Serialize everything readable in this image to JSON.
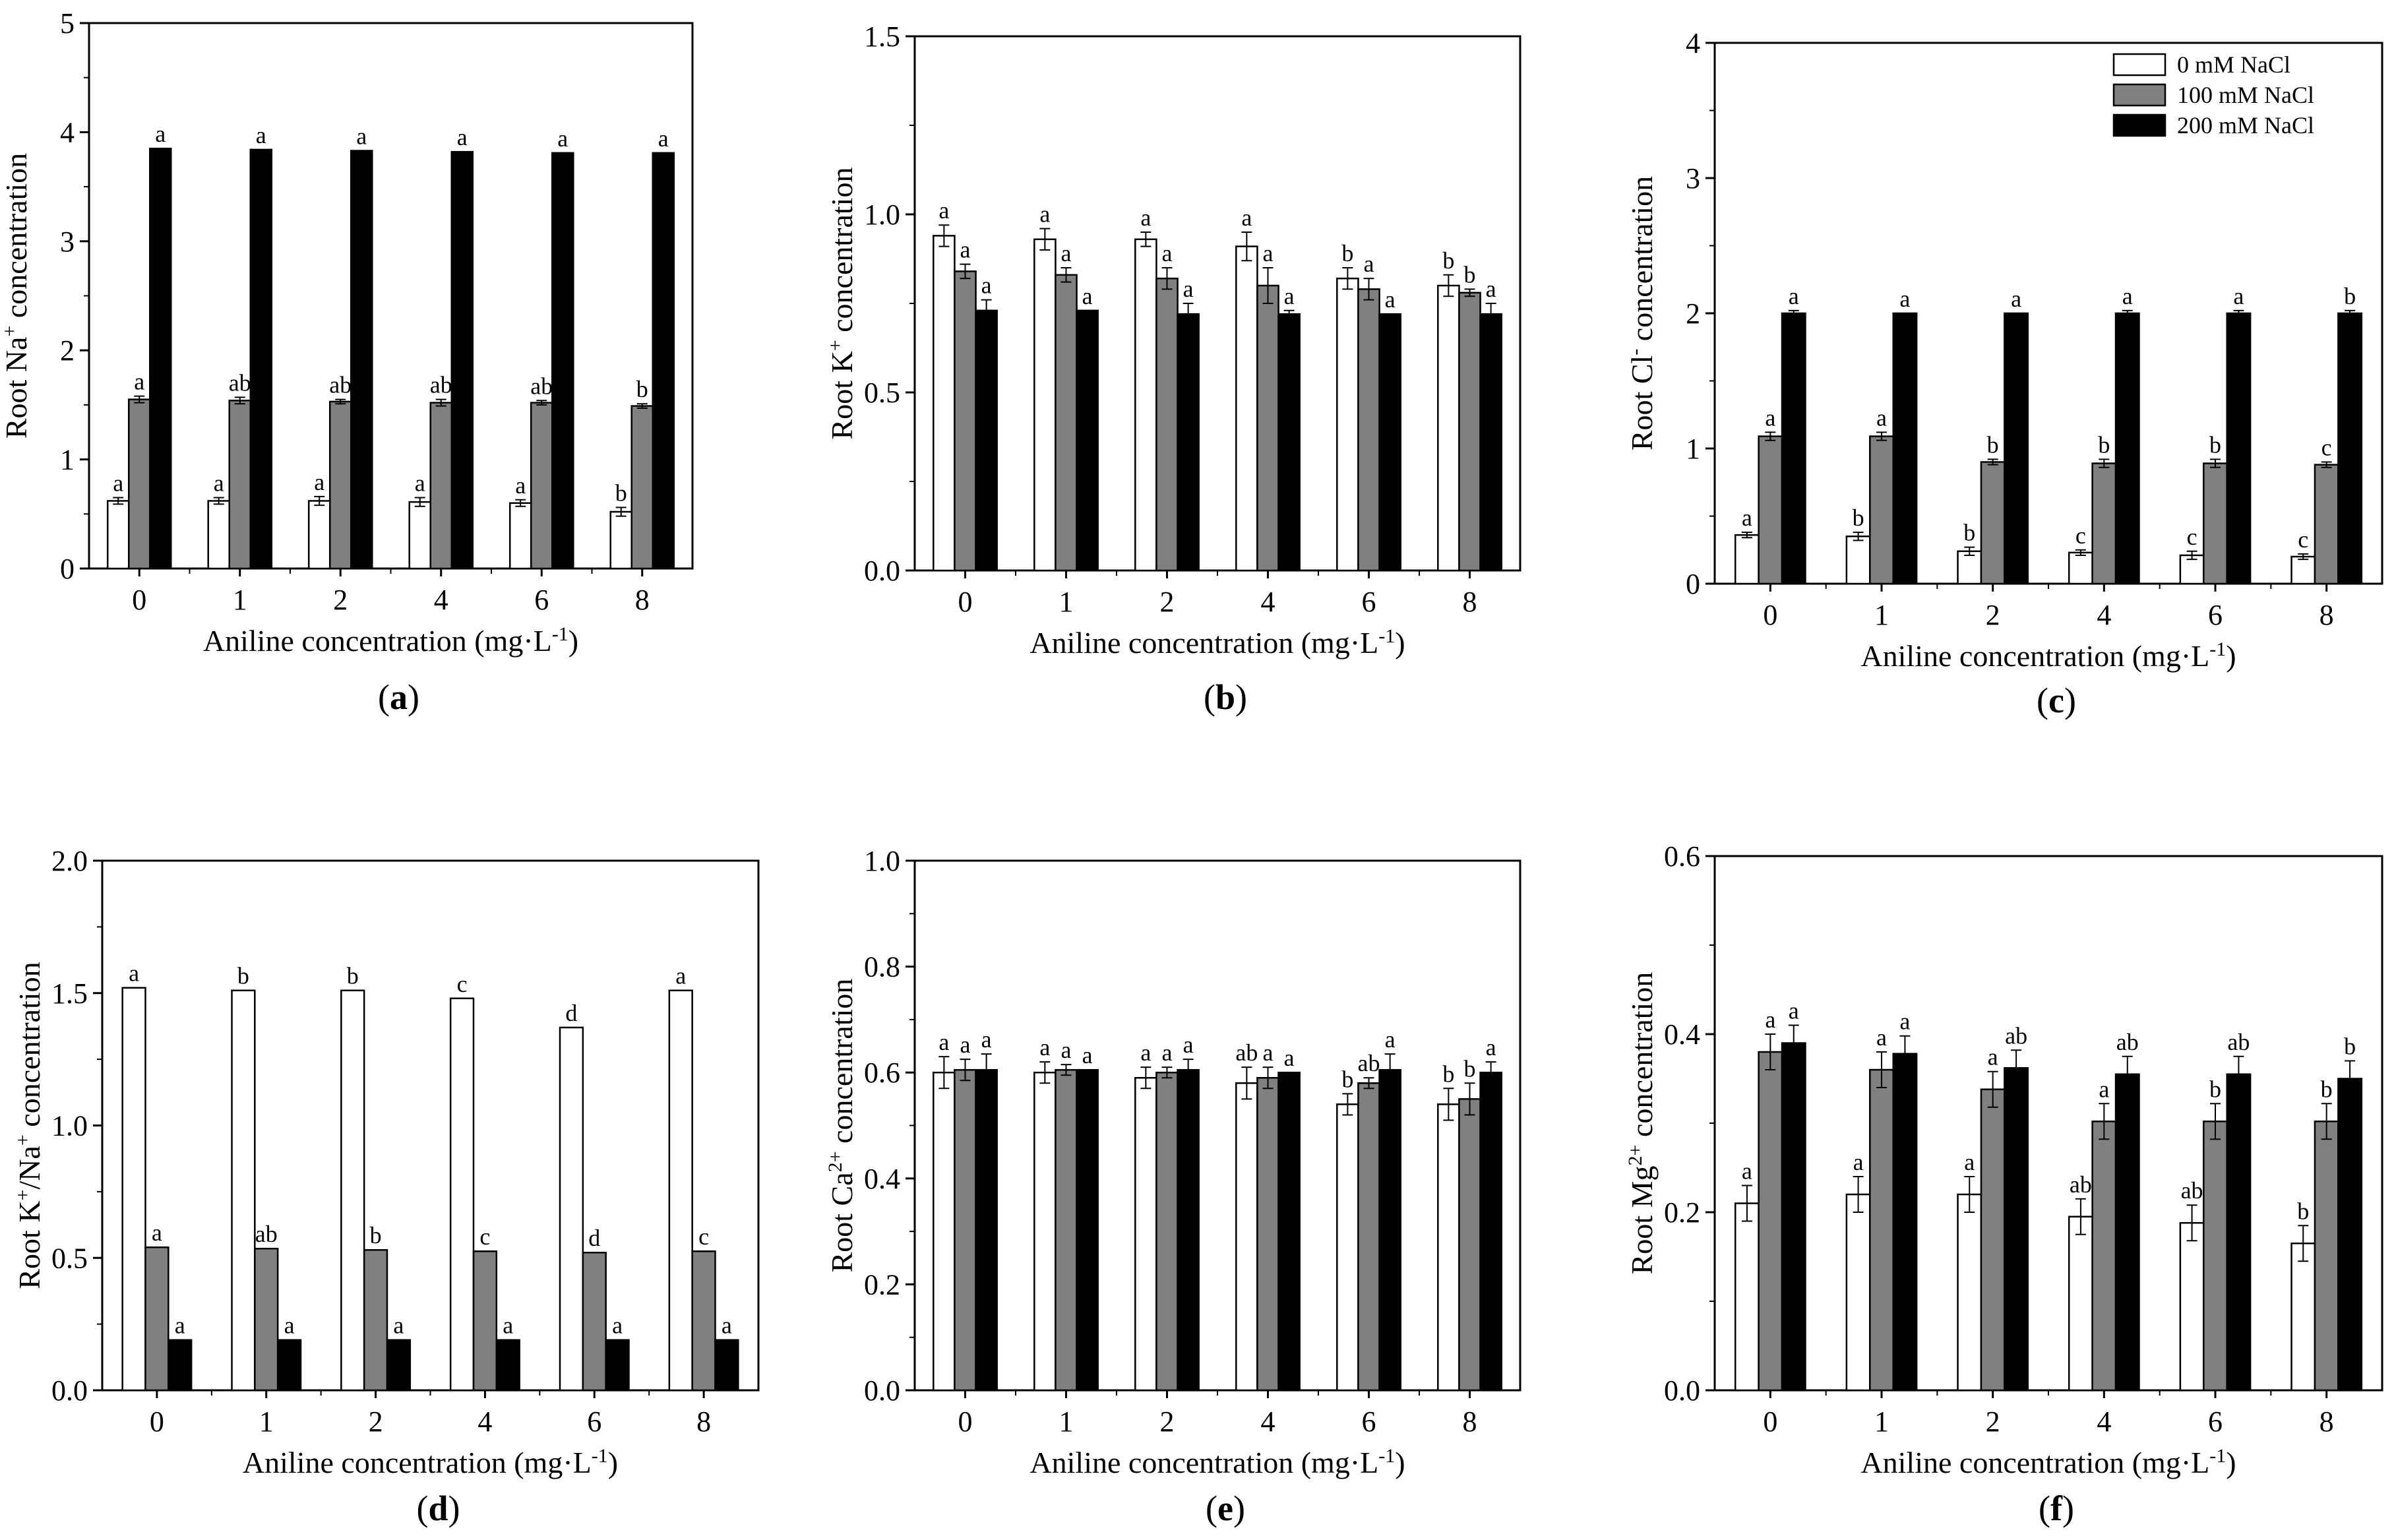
{
  "figure": {
    "legend": {
      "entries": [
        "0 mM NaCl",
        "100 mM NaCl",
        "200 mM NaCl"
      ],
      "colors": [
        "#ffffff",
        "#808080",
        "#000000"
      ]
    },
    "panel_labels": [
      "(a)",
      "(b)",
      "(c)",
      "(d)",
      "(e)",
      "(f)"
    ]
  },
  "chart_data": [
    {
      "type": "bar",
      "panel": "(a)",
      "ylabel": "Root Na+ concentration",
      "ylabel_main": "Root Na",
      "ylabel_sup": "+",
      "ylabel_rest": " concentration",
      "xlabel": "Aniline concentration (mg·L-1)",
      "ylim": [
        0,
        5
      ],
      "yticks": [
        "0",
        "1",
        "2",
        "3",
        "4",
        "5"
      ],
      "categories": [
        "0",
        "1",
        "2",
        "4",
        "6",
        "8"
      ],
      "series": [
        {
          "name": "0 mM NaCl",
          "values": [
            0.62,
            0.62,
            0.62,
            0.61,
            0.6,
            0.52
          ],
          "errors": [
            0.03,
            0.03,
            0.04,
            0.04,
            0.03,
            0.04
          ],
          "letters": [
            "a",
            "a",
            "a",
            "a",
            "a",
            "b"
          ]
        },
        {
          "name": "100 mM NaCl",
          "values": [
            1.55,
            1.54,
            1.53,
            1.52,
            1.52,
            1.49
          ],
          "errors": [
            0.03,
            0.03,
            0.02,
            0.03,
            0.02,
            0.02
          ],
          "letters": [
            "a",
            "ab",
            "ab",
            "ab",
            "ab",
            "b"
          ]
        },
        {
          "name": "200 mM NaCl",
          "values": [
            3.85,
            3.84,
            3.83,
            3.82,
            3.81,
            3.81
          ],
          "errors": [
            0.0,
            0.0,
            0.0,
            0.0,
            0.0,
            0.0
          ],
          "letters": [
            "a",
            "a",
            "a",
            "a",
            "a",
            "a"
          ]
        }
      ]
    },
    {
      "type": "bar",
      "panel": "(b)",
      "ylabel": "Root K+ concentration",
      "ylabel_main": "Root K",
      "ylabel_sup": "+",
      "ylabel_rest": " concentration",
      "xlabel": "Aniline concentration (mg·L-1)",
      "ylim": [
        0,
        1.5
      ],
      "yticks": [
        "0.0",
        "0.5",
        "1.0",
        "1.5"
      ],
      "categories": [
        "0",
        "1",
        "2",
        "4",
        "6",
        "8"
      ],
      "series": [
        {
          "name": "0 mM NaCl",
          "values": [
            0.94,
            0.93,
            0.93,
            0.91,
            0.82,
            0.8
          ],
          "errors": [
            0.03,
            0.03,
            0.02,
            0.04,
            0.03,
            0.03
          ],
          "letters": [
            "a",
            "a",
            "a",
            "a",
            "b",
            "b"
          ]
        },
        {
          "name": "100 mM NaCl",
          "values": [
            0.84,
            0.83,
            0.82,
            0.8,
            0.79,
            0.78
          ],
          "errors": [
            0.02,
            0.02,
            0.03,
            0.05,
            0.03,
            0.01
          ],
          "letters": [
            "a",
            "a",
            "a",
            "a",
            "a",
            "b"
          ]
        },
        {
          "name": "200 mM NaCl",
          "values": [
            0.73,
            0.73,
            0.72,
            0.72,
            0.72,
            0.72
          ],
          "errors": [
            0.03,
            0.0,
            0.03,
            0.01,
            0.0,
            0.03
          ],
          "letters": [
            "a",
            "a",
            "a",
            "a",
            "a",
            "a"
          ]
        }
      ]
    },
    {
      "type": "bar",
      "panel": "(c)",
      "ylabel": "Root Cl- concentration",
      "ylabel_main": "Root Cl",
      "ylabel_sup": "-",
      "ylabel_rest": " concentration",
      "xlabel": "Aniline concentration (mg·L-1)",
      "ylim": [
        0,
        4
      ],
      "yticks": [
        "0",
        "1",
        "2",
        "3",
        "4"
      ],
      "categories": [
        "0",
        "1",
        "2",
        "4",
        "6",
        "8"
      ],
      "legend": "top-right",
      "series": [
        {
          "name": "0 mM NaCl",
          "values": [
            0.36,
            0.35,
            0.24,
            0.23,
            0.21,
            0.2
          ],
          "errors": [
            0.02,
            0.03,
            0.03,
            0.02,
            0.03,
            0.02
          ],
          "letters": [
            "a",
            "b",
            "b",
            "c",
            "c",
            "c"
          ]
        },
        {
          "name": "100 mM NaCl",
          "values": [
            1.09,
            1.09,
            0.9,
            0.89,
            0.89,
            0.88
          ],
          "errors": [
            0.03,
            0.03,
            0.02,
            0.03,
            0.03,
            0.02
          ],
          "letters": [
            "a",
            "a",
            "b",
            "b",
            "b",
            "c"
          ]
        },
        {
          "name": "200 mM NaCl",
          "values": [
            2.0,
            2.0,
            2.0,
            2.0,
            2.0,
            2.0
          ],
          "errors": [
            0.02,
            0.0,
            0.0,
            0.02,
            0.02,
            0.02
          ],
          "letters": [
            "a",
            "a",
            "a",
            "a",
            "a",
            "b"
          ]
        }
      ]
    },
    {
      "type": "bar",
      "panel": "(d)",
      "ylabel": "Root K+/Na+ concentration",
      "ylabel_main": "Root K",
      "ylabel_sup": "+",
      "ylabel_mid": "/Na",
      "ylabel_sup2": "+",
      "ylabel_rest": " concentration",
      "xlabel": "Aniline concentration (mg·L-1)",
      "ylim": [
        0,
        2.0
      ],
      "yticks": [
        "0.0",
        "0.5",
        "1.0",
        "1.5",
        "2.0"
      ],
      "categories": [
        "0",
        "1",
        "2",
        "4",
        "6",
        "8"
      ],
      "series": [
        {
          "name": "0 mM NaCl",
          "values": [
            1.52,
            1.51,
            1.51,
            1.48,
            1.37,
            1.51
          ],
          "errors": [
            0.0,
            0.0,
            0.0,
            0.0,
            0.0,
            0.0
          ],
          "letters": [
            "a",
            "b",
            "b",
            "c",
            "d",
            "a"
          ]
        },
        {
          "name": "100 mM NaCl",
          "values": [
            0.54,
            0.535,
            0.53,
            0.525,
            0.52,
            0.525
          ],
          "errors": [
            0.0,
            0.0,
            0.0,
            0.0,
            0.0,
            0.0
          ],
          "letters": [
            "a",
            "ab",
            "b",
            "c",
            "d",
            "c"
          ]
        },
        {
          "name": "200 mM NaCl",
          "values": [
            0.19,
            0.19,
            0.19,
            0.19,
            0.19,
            0.19
          ],
          "errors": [
            0.0,
            0.0,
            0.0,
            0.0,
            0.0,
            0.0
          ],
          "letters": [
            "a",
            "a",
            "a",
            "a",
            "a",
            "a"
          ]
        }
      ]
    },
    {
      "type": "bar",
      "panel": "(e)",
      "ylabel": "Root Ca2+ concentration",
      "ylabel_main": "Root Ca",
      "ylabel_sup": "2+",
      "ylabel_rest": " concentration",
      "xlabel": "Aniline concentration (mg·L-1)",
      "ylim": [
        0,
        1.0
      ],
      "yticks": [
        "0.0",
        "0.2",
        "0.4",
        "0.6",
        "0.8",
        "1.0"
      ],
      "categories": [
        "0",
        "1",
        "2",
        "4",
        "6",
        "8"
      ],
      "series": [
        {
          "name": "0 mM NaCl",
          "values": [
            0.6,
            0.6,
            0.59,
            0.58,
            0.54,
            0.54
          ],
          "errors": [
            0.03,
            0.02,
            0.02,
            0.03,
            0.02,
            0.03
          ],
          "letters": [
            "a",
            "a",
            "a",
            "ab",
            "b",
            "b"
          ]
        },
        {
          "name": "100 mM NaCl",
          "values": [
            0.605,
            0.605,
            0.6,
            0.59,
            0.58,
            0.55
          ],
          "errors": [
            0.02,
            0.01,
            0.01,
            0.02,
            0.01,
            0.03
          ],
          "letters": [
            "a",
            "a",
            "a",
            "a",
            "ab",
            "b"
          ]
        },
        {
          "name": "200 mM NaCl",
          "values": [
            0.605,
            0.605,
            0.605,
            0.6,
            0.605,
            0.6
          ],
          "errors": [
            0.03,
            0.0,
            0.02,
            0.0,
            0.03,
            0.02
          ],
          "letters": [
            "a",
            "a",
            "a",
            "a",
            "a",
            "a"
          ]
        }
      ]
    },
    {
      "type": "bar",
      "panel": "(f)",
      "ylabel": "Root Mg2+ concentration",
      "ylabel_main": "Root Mg",
      "ylabel_sup": "2+",
      "ylabel_rest": " concentration",
      "xlabel": "Aniline concentration (mg·L-1)",
      "ylim": [
        0,
        0.6
      ],
      "yticks": [
        "0.0",
        "0.2",
        "0.4",
        "0.6"
      ],
      "categories": [
        "0",
        "1",
        "2",
        "4",
        "6",
        "8"
      ],
      "series": [
        {
          "name": "0 mM NaCl",
          "values": [
            0.21,
            0.22,
            0.22,
            0.195,
            0.188,
            0.165
          ],
          "errors": [
            0.02,
            0.02,
            0.02,
            0.02,
            0.02,
            0.02
          ],
          "letters": [
            "a",
            "a",
            "a",
            "ab",
            "ab",
            "b"
          ]
        },
        {
          "name": "100 mM NaCl",
          "values": [
            0.38,
            0.36,
            0.338,
            0.302,
            0.302,
            0.302
          ],
          "errors": [
            0.02,
            0.02,
            0.02,
            0.02,
            0.02,
            0.02
          ],
          "letters": [
            "a",
            "a",
            "a",
            "a",
            "b",
            "b"
          ]
        },
        {
          "name": "200 mM NaCl",
          "values": [
            0.39,
            0.378,
            0.362,
            0.355,
            0.355,
            0.35
          ],
          "errors": [
            0.02,
            0.02,
            0.02,
            0.02,
            0.02,
            0.02
          ],
          "letters": [
            "a",
            "a",
            "ab",
            "ab",
            "ab",
            "b"
          ]
        }
      ]
    }
  ]
}
